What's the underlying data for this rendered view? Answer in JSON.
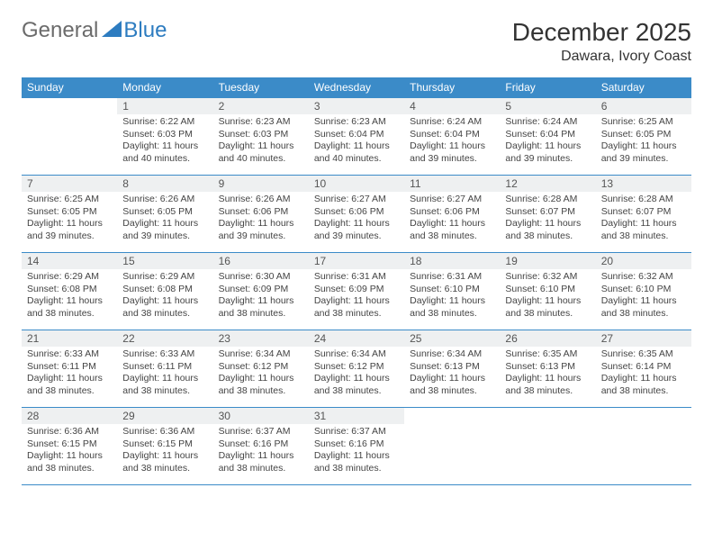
{
  "logo": {
    "general": "General",
    "blue": "Blue",
    "triangle_color": "#2d7cc0"
  },
  "title": "December 2025",
  "location": "Dawara, Ivory Coast",
  "header_bg": "#3b8bc8",
  "daynum_bg": "#eef0f1",
  "border_color": "#3b8bc8",
  "weekdays": [
    "Sunday",
    "Monday",
    "Tuesday",
    "Wednesday",
    "Thursday",
    "Friday",
    "Saturday"
  ],
  "weeks": [
    [
      {
        "empty": true
      },
      {
        "num": "1",
        "sunrise": "Sunrise: 6:22 AM",
        "sunset": "Sunset: 6:03 PM",
        "daylight": "Daylight: 11 hours and 40 minutes."
      },
      {
        "num": "2",
        "sunrise": "Sunrise: 6:23 AM",
        "sunset": "Sunset: 6:03 PM",
        "daylight": "Daylight: 11 hours and 40 minutes."
      },
      {
        "num": "3",
        "sunrise": "Sunrise: 6:23 AM",
        "sunset": "Sunset: 6:04 PM",
        "daylight": "Daylight: 11 hours and 40 minutes."
      },
      {
        "num": "4",
        "sunrise": "Sunrise: 6:24 AM",
        "sunset": "Sunset: 6:04 PM",
        "daylight": "Daylight: 11 hours and 39 minutes."
      },
      {
        "num": "5",
        "sunrise": "Sunrise: 6:24 AM",
        "sunset": "Sunset: 6:04 PM",
        "daylight": "Daylight: 11 hours and 39 minutes."
      },
      {
        "num": "6",
        "sunrise": "Sunrise: 6:25 AM",
        "sunset": "Sunset: 6:05 PM",
        "daylight": "Daylight: 11 hours and 39 minutes."
      }
    ],
    [
      {
        "num": "7",
        "sunrise": "Sunrise: 6:25 AM",
        "sunset": "Sunset: 6:05 PM",
        "daylight": "Daylight: 11 hours and 39 minutes."
      },
      {
        "num": "8",
        "sunrise": "Sunrise: 6:26 AM",
        "sunset": "Sunset: 6:05 PM",
        "daylight": "Daylight: 11 hours and 39 minutes."
      },
      {
        "num": "9",
        "sunrise": "Sunrise: 6:26 AM",
        "sunset": "Sunset: 6:06 PM",
        "daylight": "Daylight: 11 hours and 39 minutes."
      },
      {
        "num": "10",
        "sunrise": "Sunrise: 6:27 AM",
        "sunset": "Sunset: 6:06 PM",
        "daylight": "Daylight: 11 hours and 39 minutes."
      },
      {
        "num": "11",
        "sunrise": "Sunrise: 6:27 AM",
        "sunset": "Sunset: 6:06 PM",
        "daylight": "Daylight: 11 hours and 38 minutes."
      },
      {
        "num": "12",
        "sunrise": "Sunrise: 6:28 AM",
        "sunset": "Sunset: 6:07 PM",
        "daylight": "Daylight: 11 hours and 38 minutes."
      },
      {
        "num": "13",
        "sunrise": "Sunrise: 6:28 AM",
        "sunset": "Sunset: 6:07 PM",
        "daylight": "Daylight: 11 hours and 38 minutes."
      }
    ],
    [
      {
        "num": "14",
        "sunrise": "Sunrise: 6:29 AM",
        "sunset": "Sunset: 6:08 PM",
        "daylight": "Daylight: 11 hours and 38 minutes."
      },
      {
        "num": "15",
        "sunrise": "Sunrise: 6:29 AM",
        "sunset": "Sunset: 6:08 PM",
        "daylight": "Daylight: 11 hours and 38 minutes."
      },
      {
        "num": "16",
        "sunrise": "Sunrise: 6:30 AM",
        "sunset": "Sunset: 6:09 PM",
        "daylight": "Daylight: 11 hours and 38 minutes."
      },
      {
        "num": "17",
        "sunrise": "Sunrise: 6:31 AM",
        "sunset": "Sunset: 6:09 PM",
        "daylight": "Daylight: 11 hours and 38 minutes."
      },
      {
        "num": "18",
        "sunrise": "Sunrise: 6:31 AM",
        "sunset": "Sunset: 6:10 PM",
        "daylight": "Daylight: 11 hours and 38 minutes."
      },
      {
        "num": "19",
        "sunrise": "Sunrise: 6:32 AM",
        "sunset": "Sunset: 6:10 PM",
        "daylight": "Daylight: 11 hours and 38 minutes."
      },
      {
        "num": "20",
        "sunrise": "Sunrise: 6:32 AM",
        "sunset": "Sunset: 6:10 PM",
        "daylight": "Daylight: 11 hours and 38 minutes."
      }
    ],
    [
      {
        "num": "21",
        "sunrise": "Sunrise: 6:33 AM",
        "sunset": "Sunset: 6:11 PM",
        "daylight": "Daylight: 11 hours and 38 minutes."
      },
      {
        "num": "22",
        "sunrise": "Sunrise: 6:33 AM",
        "sunset": "Sunset: 6:11 PM",
        "daylight": "Daylight: 11 hours and 38 minutes."
      },
      {
        "num": "23",
        "sunrise": "Sunrise: 6:34 AM",
        "sunset": "Sunset: 6:12 PM",
        "daylight": "Daylight: 11 hours and 38 minutes."
      },
      {
        "num": "24",
        "sunrise": "Sunrise: 6:34 AM",
        "sunset": "Sunset: 6:12 PM",
        "daylight": "Daylight: 11 hours and 38 minutes."
      },
      {
        "num": "25",
        "sunrise": "Sunrise: 6:34 AM",
        "sunset": "Sunset: 6:13 PM",
        "daylight": "Daylight: 11 hours and 38 minutes."
      },
      {
        "num": "26",
        "sunrise": "Sunrise: 6:35 AM",
        "sunset": "Sunset: 6:13 PM",
        "daylight": "Daylight: 11 hours and 38 minutes."
      },
      {
        "num": "27",
        "sunrise": "Sunrise: 6:35 AM",
        "sunset": "Sunset: 6:14 PM",
        "daylight": "Daylight: 11 hours and 38 minutes."
      }
    ],
    [
      {
        "num": "28",
        "sunrise": "Sunrise: 6:36 AM",
        "sunset": "Sunset: 6:15 PM",
        "daylight": "Daylight: 11 hours and 38 minutes."
      },
      {
        "num": "29",
        "sunrise": "Sunrise: 6:36 AM",
        "sunset": "Sunset: 6:15 PM",
        "daylight": "Daylight: 11 hours and 38 minutes."
      },
      {
        "num": "30",
        "sunrise": "Sunrise: 6:37 AM",
        "sunset": "Sunset: 6:16 PM",
        "daylight": "Daylight: 11 hours and 38 minutes."
      },
      {
        "num": "31",
        "sunrise": "Sunrise: 6:37 AM",
        "sunset": "Sunset: 6:16 PM",
        "daylight": "Daylight: 11 hours and 38 minutes."
      },
      {
        "empty": true
      },
      {
        "empty": true
      },
      {
        "empty": true
      }
    ]
  ]
}
